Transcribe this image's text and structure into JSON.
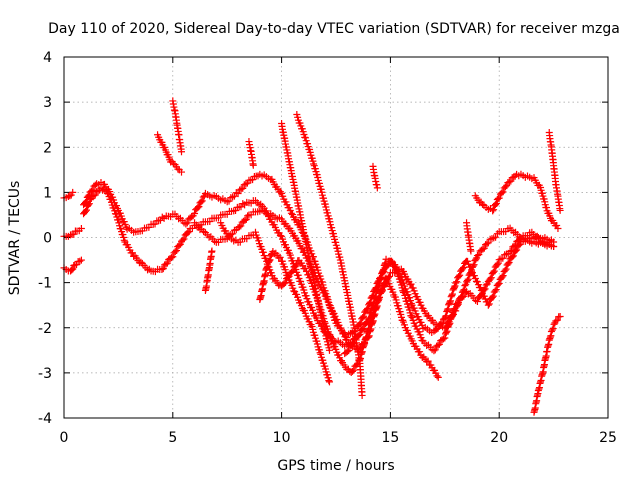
{
  "chart_data": {
    "type": "scatter",
    "title": "Day 110 of 2020, Sidereal Day-to-day VTEC variation (SDTVAR) for receiver mzga",
    "xlabel": "GPS time / hours",
    "ylabel": "SDTVAR / TECUs",
    "xlim": [
      0,
      25
    ],
    "ylim": [
      -4,
      4
    ],
    "xticks": [
      "0",
      "5",
      "10",
      "15",
      "20",
      "25"
    ],
    "yticks": [
      "4",
      "3",
      "2",
      "1",
      "0",
      "-1",
      "-2",
      "-3",
      "-4"
    ],
    "grid": true,
    "marker": "plus",
    "color": "#ff0000",
    "series": [
      {
        "points": [
          [
            0.0,
            0.85
          ],
          [
            0.2,
            0.9
          ],
          [
            0.4,
            1.0
          ]
        ]
      },
      {
        "points": [
          [
            0.0,
            0.0
          ],
          [
            0.3,
            0.05
          ],
          [
            0.6,
            0.15
          ],
          [
            0.8,
            0.2
          ]
        ]
      },
      {
        "points": [
          [
            0.0,
            -0.7
          ],
          [
            0.3,
            -0.75
          ],
          [
            0.5,
            -0.6
          ],
          [
            0.8,
            -0.5
          ]
        ]
      },
      {
        "points": [
          [
            0.9,
            0.7
          ],
          [
            1.2,
            1.0
          ],
          [
            1.5,
            1.2
          ],
          [
            1.8,
            1.2
          ],
          [
            2.1,
            1.0
          ],
          [
            2.5,
            0.6
          ],
          [
            2.9,
            0.2
          ],
          [
            3.3,
            0.1
          ],
          [
            3.7,
            0.2
          ],
          [
            4.1,
            0.3
          ],
          [
            4.6,
            0.45
          ],
          [
            5.1,
            0.5
          ],
          [
            5.6,
            0.3
          ],
          [
            6.0,
            0.55
          ],
          [
            6.5,
            0.95
          ],
          [
            7.0,
            0.9
          ],
          [
            7.5,
            0.8
          ],
          [
            8.0,
            1.0
          ],
          [
            8.5,
            1.25
          ],
          [
            9.0,
            1.4
          ],
          [
            9.5,
            1.3
          ],
          [
            10.0,
            0.95
          ],
          [
            10.5,
            0.5
          ],
          [
            11.0,
            0.1
          ],
          [
            11.5,
            -0.5
          ],
          [
            12.0,
            -1.2
          ],
          [
            12.5,
            -1.9
          ],
          [
            13.0,
            -2.2
          ],
          [
            13.5,
            -2.0
          ],
          [
            14.0,
            -1.5
          ],
          [
            14.5,
            -0.9
          ],
          [
            15.0,
            -0.5
          ],
          [
            15.5,
            -0.9
          ],
          [
            16.0,
            -1.5
          ],
          [
            16.5,
            -2.0
          ],
          [
            17.0,
            -2.1
          ],
          [
            17.5,
            -1.8
          ],
          [
            18.0,
            -1.0
          ],
          [
            18.5,
            -0.5
          ],
          [
            19.0,
            -1.0
          ],
          [
            19.5,
            -1.5
          ],
          [
            20.0,
            -1.0
          ],
          [
            20.5,
            -0.5
          ],
          [
            21.0,
            -0.1
          ],
          [
            21.5,
            0.0
          ],
          [
            22.0,
            0.0
          ],
          [
            22.5,
            -0.1
          ]
        ]
      },
      {
        "points": [
          [
            0.9,
            0.5
          ],
          [
            1.3,
            0.9
          ],
          [
            1.7,
            1.1
          ],
          [
            2.0,
            1.0
          ],
          [
            2.4,
            0.5
          ],
          [
            2.8,
            -0.1
          ],
          [
            3.2,
            -0.4
          ],
          [
            3.6,
            -0.6
          ],
          [
            4.0,
            -0.75
          ],
          [
            4.5,
            -0.7
          ],
          [
            5.0,
            -0.4
          ],
          [
            5.4,
            -0.1
          ],
          [
            5.8,
            0.2
          ],
          [
            6.3,
            0.3
          ],
          [
            6.8,
            0.4
          ],
          [
            7.3,
            0.5
          ],
          [
            7.8,
            0.6
          ],
          [
            8.3,
            0.75
          ],
          [
            8.8,
            0.8
          ],
          [
            9.2,
            0.65
          ],
          [
            9.6,
            0.3
          ],
          [
            10.0,
            0.0
          ],
          [
            10.4,
            -0.4
          ],
          [
            10.8,
            -0.9
          ],
          [
            11.2,
            -1.4
          ],
          [
            11.6,
            -1.8
          ],
          [
            12.0,
            -2.1
          ],
          [
            12.5,
            -2.3
          ],
          [
            13.0,
            -2.4
          ],
          [
            13.5,
            -2.2
          ],
          [
            14.0,
            -1.8
          ],
          [
            14.5,
            -1.0
          ],
          [
            14.8,
            -0.5
          ],
          [
            15.2,
            -0.6
          ],
          [
            15.6,
            -1.2
          ],
          [
            16.0,
            -1.8
          ],
          [
            16.5,
            -2.3
          ],
          [
            17.0,
            -2.5
          ],
          [
            17.5,
            -2.2
          ],
          [
            18.0,
            -1.5
          ],
          [
            18.5,
            -1.2
          ],
          [
            19.0,
            -1.4
          ],
          [
            19.5,
            -1.0
          ],
          [
            20.0,
            -0.5
          ],
          [
            20.5,
            -0.3
          ],
          [
            21.0,
            0.0
          ],
          [
            21.5,
            0.1
          ],
          [
            22.0,
            -0.1
          ],
          [
            22.5,
            -0.2
          ]
        ]
      },
      {
        "points": [
          [
            6.0,
            0.3
          ],
          [
            6.5,
            0.1
          ],
          [
            7.0,
            -0.1
          ],
          [
            7.5,
            0.0
          ],
          [
            8.0,
            0.2
          ],
          [
            8.5,
            0.5
          ],
          [
            9.0,
            0.6
          ],
          [
            9.5,
            0.5
          ],
          [
            10.0,
            0.4
          ],
          [
            10.5,
            0.1
          ],
          [
            11.0,
            -0.3
          ],
          [
            11.5,
            -0.8
          ],
          [
            12.0,
            -1.3
          ],
          [
            12.5,
            -1.8
          ],
          [
            13.0,
            -2.3
          ],
          [
            13.5,
            -2.5
          ],
          [
            14.0,
            -2.2
          ],
          [
            14.5,
            -1.3
          ],
          [
            15.0,
            -0.8
          ],
          [
            15.5,
            -0.7
          ],
          [
            16.0,
            -1.1
          ],
          [
            16.5,
            -1.6
          ],
          [
            17.0,
            -1.9
          ],
          [
            17.5,
            -2.0
          ],
          [
            18.0,
            -1.6
          ],
          [
            18.5,
            -1.0
          ],
          [
            19.0,
            -0.4
          ],
          [
            19.5,
            -0.1
          ],
          [
            20.0,
            0.1
          ],
          [
            20.5,
            0.2
          ],
          [
            21.0,
            0.0
          ],
          [
            21.5,
            -0.1
          ],
          [
            22.0,
            -0.15
          ],
          [
            22.5,
            -0.2
          ]
        ]
      },
      {
        "points": [
          [
            7.2,
            0.3
          ],
          [
            7.6,
            0.0
          ],
          [
            8.0,
            -0.1
          ],
          [
            8.4,
            0.0
          ],
          [
            8.8,
            0.1
          ],
          [
            9.2,
            -0.4
          ],
          [
            9.6,
            -0.9
          ],
          [
            10.0,
            -1.1
          ],
          [
            10.4,
            -0.8
          ],
          [
            10.8,
            -0.5
          ],
          [
            11.2,
            -0.8
          ],
          [
            11.6,
            -1.3
          ],
          [
            12.0,
            -1.9
          ],
          [
            12.4,
            -2.4
          ],
          [
            12.8,
            -2.8
          ],
          [
            13.2,
            -3.0
          ],
          [
            13.6,
            -2.7
          ],
          [
            14.0,
            -2.0
          ],
          [
            14.4,
            -1.4
          ],
          [
            14.8,
            -0.9
          ],
          [
            15.2,
            -1.3
          ],
          [
            15.6,
            -1.9
          ],
          [
            16.0,
            -2.3
          ],
          [
            16.4,
            -2.6
          ],
          [
            16.8,
            -2.8
          ],
          [
            17.2,
            -3.1
          ]
        ]
      },
      {
        "points": [
          [
            9.0,
            -1.4
          ],
          [
            9.3,
            -0.7
          ],
          [
            9.6,
            -0.3
          ],
          [
            10.0,
            -0.5
          ],
          [
            10.3,
            -0.9
          ],
          [
            10.6,
            -1.2
          ],
          [
            11.0,
            -1.6
          ],
          [
            11.4,
            -2.0
          ],
          [
            11.8,
            -2.6
          ],
          [
            12.2,
            -3.2
          ]
        ]
      },
      {
        "points": [
          [
            4.3,
            2.25
          ],
          [
            4.5,
            2.1
          ],
          [
            4.7,
            1.9
          ],
          [
            4.9,
            1.7
          ],
          [
            5.1,
            1.6
          ],
          [
            5.3,
            1.5
          ],
          [
            5.4,
            1.45
          ]
        ]
      },
      {
        "points": [
          [
            5.0,
            3.0
          ],
          [
            5.1,
            2.8
          ],
          [
            5.2,
            2.5
          ],
          [
            5.3,
            2.2
          ],
          [
            5.4,
            1.9
          ]
        ]
      },
      {
        "points": [
          [
            6.5,
            -1.2
          ],
          [
            6.6,
            -0.9
          ],
          [
            6.7,
            -0.6
          ],
          [
            6.8,
            -0.3
          ]
        ]
      },
      {
        "points": [
          [
            8.5,
            2.1
          ],
          [
            8.6,
            1.9
          ],
          [
            8.7,
            1.6
          ]
        ]
      },
      {
        "points": [
          [
            10.0,
            2.5
          ],
          [
            10.3,
            1.8
          ],
          [
            10.6,
            1.1
          ],
          [
            10.9,
            0.4
          ],
          [
            11.2,
            -0.3
          ],
          [
            11.5,
            -1.0
          ],
          [
            11.8,
            -1.7
          ],
          [
            12.2,
            -2.5
          ]
        ]
      },
      {
        "points": [
          [
            10.7,
            2.7
          ],
          [
            11.1,
            2.2
          ],
          [
            11.5,
            1.6
          ],
          [
            11.9,
            0.9
          ],
          [
            12.3,
            0.2
          ],
          [
            12.7,
            -0.5
          ],
          [
            13.0,
            -1.2
          ],
          [
            13.3,
            -1.9
          ],
          [
            13.6,
            -2.8
          ],
          [
            13.7,
            -3.5
          ]
        ]
      },
      {
        "points": [
          [
            12.9,
            -2.6
          ],
          [
            13.2,
            -2.4
          ],
          [
            13.4,
            -2.2
          ]
        ]
      },
      {
        "points": [
          [
            14.2,
            1.55
          ],
          [
            14.3,
            1.3
          ],
          [
            14.4,
            1.1
          ]
        ]
      },
      {
        "points": [
          [
            18.9,
            0.9
          ],
          [
            19.3,
            0.7
          ],
          [
            19.7,
            0.6
          ],
          [
            20.0,
            0.9
          ],
          [
            20.4,
            1.2
          ],
          [
            20.8,
            1.4
          ],
          [
            21.2,
            1.35
          ],
          [
            21.6,
            1.3
          ],
          [
            21.9,
            1.1
          ],
          [
            22.2,
            0.6
          ],
          [
            22.4,
            0.4
          ],
          [
            22.7,
            0.2
          ]
        ]
      },
      {
        "points": [
          [
            18.5,
            0.3
          ],
          [
            18.6,
            0.0
          ],
          [
            18.7,
            -0.3
          ]
        ]
      },
      {
        "points": [
          [
            22.3,
            2.3
          ],
          [
            22.4,
            2.0
          ],
          [
            22.5,
            1.6
          ],
          [
            22.6,
            1.2
          ],
          [
            22.7,
            0.9
          ],
          [
            22.8,
            0.6
          ]
        ]
      },
      {
        "points": [
          [
            21.6,
            -3.9
          ],
          [
            21.8,
            -3.4
          ],
          [
            22.0,
            -3.0
          ],
          [
            22.2,
            -2.5
          ],
          [
            22.4,
            -2.1
          ],
          [
            22.6,
            -1.85
          ],
          [
            22.8,
            -1.75
          ]
        ]
      }
    ]
  }
}
